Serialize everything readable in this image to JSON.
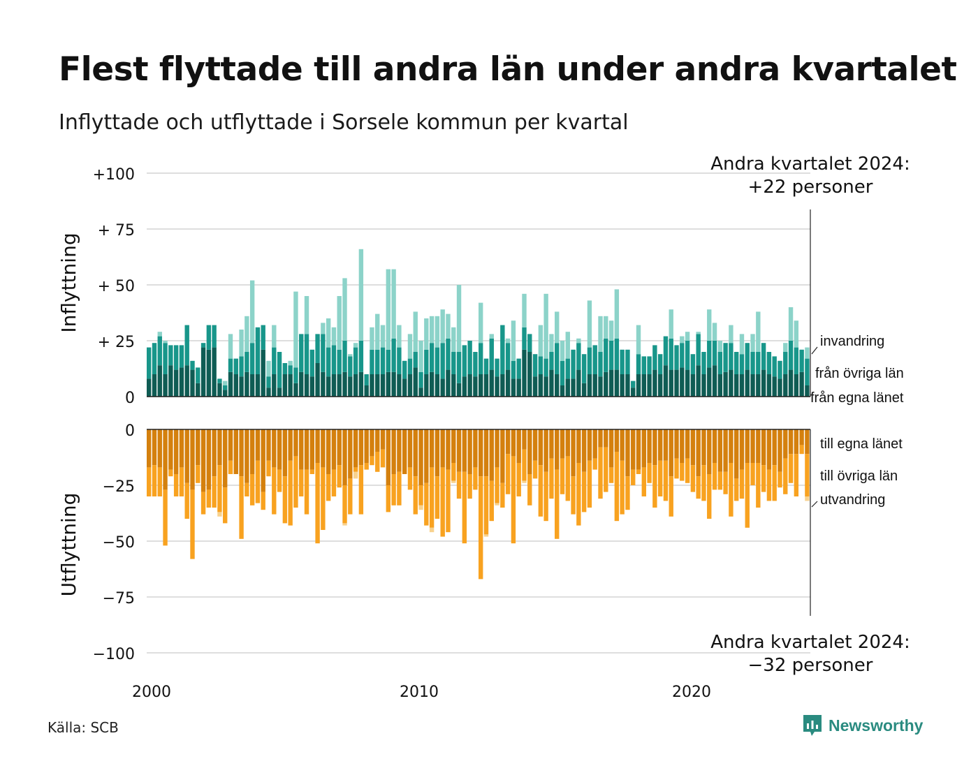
{
  "title": "Flest flyttade till andra län under andra kvartalet",
  "subtitle": "Inflyttade och utflyttade i Sorsele kommun per kvartal",
  "source": "Källa: SCB",
  "brand": {
    "name": "Newsworthy",
    "icon": "newsworthy-chart-bubble-icon",
    "color": "#2a8b80"
  },
  "chart_data": {
    "type": "bar",
    "stacked": true,
    "x_tick_labels": [
      "2000",
      "2010",
      "2020"
    ],
    "x_range": [
      "2000 Q1",
      "2024 Q2"
    ],
    "top_panel": {
      "ylabel": "Inflyttning",
      "ylim": [
        0,
        100
      ],
      "ytick_labels": [
        "0",
        "+ 25",
        "+ 50",
        "+ 75",
        "+100"
      ],
      "ytick_values": [
        0,
        25,
        50,
        75,
        100
      ],
      "series_colors": [
        "#0f5c54",
        "#18968a",
        "#8cd3c9"
      ],
      "series_labels": [
        "från egna länet",
        "från övriga län",
        "invandring"
      ],
      "own": [
        8,
        10,
        14,
        10,
        14,
        12,
        13,
        14,
        12,
        6,
        22,
        21,
        22,
        6,
        3,
        11,
        10,
        9,
        11,
        10,
        10,
        21,
        4,
        10,
        4,
        10,
        10,
        6,
        11,
        10,
        9,
        15,
        11,
        9,
        10,
        10,
        11,
        9,
        10,
        11,
        5,
        10,
        10,
        10,
        11,
        11,
        10,
        8,
        10,
        13,
        4,
        10,
        11,
        10,
        8,
        12,
        10,
        6,
        9,
        10,
        9,
        10,
        10,
        12,
        9,
        10,
        12,
        8,
        8,
        21,
        20,
        9,
        10,
        9,
        12,
        10,
        5,
        8,
        8,
        12,
        6,
        10,
        10,
        9,
        11,
        12,
        12,
        10,
        10,
        4,
        10,
        10,
        10,
        12,
        10,
        14,
        12,
        12,
        13,
        12,
        10,
        14,
        10,
        13,
        14,
        10,
        11,
        12,
        10,
        10,
        12,
        10,
        10,
        12,
        10,
        9,
        8,
        10,
        12,
        10,
        11,
        5
      ],
      "other": [
        14,
        14,
        13,
        14,
        9,
        11,
        10,
        18,
        4,
        7,
        2,
        11,
        10,
        2,
        2,
        6,
        7,
        9,
        9,
        14,
        21,
        11,
        5,
        12,
        16,
        5,
        4,
        7,
        17,
        18,
        12,
        13,
        17,
        13,
        13,
        11,
        14,
        9,
        12,
        14,
        5,
        11,
        11,
        12,
        10,
        15,
        12,
        8,
        7,
        7,
        7,
        11,
        13,
        12,
        16,
        14,
        10,
        14,
        14,
        15,
        11,
        14,
        7,
        14,
        8,
        22,
        12,
        8,
        9,
        10,
        8,
        10,
        8,
        8,
        8,
        14,
        11,
        9,
        13,
        12,
        13,
        12,
        13,
        11,
        15,
        13,
        14,
        11,
        11,
        3,
        9,
        8,
        8,
        11,
        9,
        13,
        14,
        11,
        11,
        13,
        9,
        14,
        10,
        12,
        11,
        10,
        13,
        12,
        10,
        9,
        12,
        10,
        10,
        12,
        10,
        9,
        8,
        10,
        13,
        12,
        10,
        12
      ],
      "immigration": [
        0,
        0,
        2,
        1,
        0,
        0,
        0,
        0,
        0,
        0,
        0,
        0,
        0,
        0,
        2,
        11,
        0,
        12,
        16,
        28,
        0,
        0,
        7,
        10,
        0,
        0,
        2,
        34,
        0,
        17,
        0,
        0,
        5,
        13,
        8,
        24,
        28,
        1,
        2,
        41,
        0,
        10,
        16,
        10,
        36,
        31,
        10,
        0,
        11,
        18,
        14,
        14,
        12,
        14,
        15,
        11,
        11,
        30,
        0,
        0,
        0,
        18,
        0,
        2,
        0,
        0,
        2,
        18,
        0,
        15,
        0,
        0,
        14,
        29,
        8,
        14,
        9,
        12,
        0,
        2,
        0,
        21,
        0,
        16,
        10,
        9,
        22,
        0,
        0,
        0,
        13,
        0,
        0,
        0,
        0,
        0,
        13,
        0,
        3,
        4,
        0,
        1,
        0,
        14,
        8,
        5,
        0,
        8,
        0,
        9,
        0,
        8,
        18,
        0,
        0,
        0,
        0,
        4,
        15,
        12,
        0,
        5
      ]
    },
    "bottom_panel": {
      "ylabel": "Utflyttning",
      "ylim": [
        -100,
        0
      ],
      "ytick_labels": [
        "0",
        "−25",
        "−50",
        "−75",
        "−100"
      ],
      "ytick_values": [
        0,
        -25,
        -50,
        -75,
        -100
      ],
      "series_colors": [
        "#d4800e",
        "#f8a220",
        "#f8d28e"
      ],
      "series_labels": [
        "till egna länet",
        "till övriga län",
        "utvandring"
      ],
      "own": [
        17,
        16,
        17,
        27,
        18,
        20,
        17,
        24,
        27,
        16,
        28,
        27,
        21,
        16,
        26,
        14,
        20,
        21,
        24,
        20,
        14,
        28,
        14,
        17,
        18,
        21,
        14,
        12,
        18,
        18,
        18,
        15,
        17,
        20,
        18,
        16,
        25,
        22,
        17,
        16,
        15,
        12,
        10,
        9,
        25,
        20,
        19,
        20,
        17,
        21,
        25,
        24,
        17,
        21,
        17,
        18,
        15,
        19,
        19,
        20,
        17,
        21,
        21,
        23,
        17,
        24,
        11,
        12,
        15,
        9,
        20,
        14,
        16,
        19,
        13,
        18,
        13,
        12,
        21,
        15,
        19,
        14,
        13,
        8,
        8,
        17,
        10,
        14,
        21,
        18,
        18,
        17,
        15,
        16,
        14,
        14,
        21,
        13,
        15,
        13,
        16,
        21,
        16,
        20,
        15,
        19,
        19,
        15,
        22,
        18,
        15,
        15,
        15,
        16,
        18,
        16,
        19,
        13,
        11,
        11,
        7,
        11
      ],
      "other": [
        13,
        14,
        13,
        25,
        3,
        10,
        13,
        16,
        31,
        8,
        10,
        8,
        14,
        21,
        16,
        6,
        0,
        28,
        6,
        14,
        19,
        8,
        7,
        21,
        10,
        21,
        29,
        23,
        12,
        20,
        2,
        36,
        28,
        12,
        12,
        10,
        17,
        16,
        2,
        22,
        3,
        4,
        9,
        8,
        12,
        14,
        15,
        0,
        10,
        17,
        9,
        19,
        27,
        19,
        31,
        28,
        8,
        12,
        32,
        11,
        10,
        46,
        26,
        18,
        16,
        11,
        18,
        39,
        15,
        14,
        14,
        8,
        23,
        22,
        18,
        31,
        16,
        20,
        17,
        28,
        18,
        21,
        5,
        23,
        20,
        7,
        31,
        24,
        15,
        7,
        2,
        13,
        9,
        19,
        16,
        18,
        18,
        9,
        8,
        11,
        12,
        10,
        16,
        20,
        12,
        8,
        10,
        24,
        10,
        13,
        29,
        10,
        20,
        12,
        14,
        16,
        7,
        16,
        13,
        19,
        4,
        19
      ],
      "emigration": [
        0,
        0,
        0,
        0,
        0,
        0,
        0,
        0,
        0,
        0,
        0,
        0,
        0,
        2,
        0,
        0,
        0,
        0,
        0,
        0,
        0,
        0,
        0,
        0,
        0,
        0,
        0,
        0,
        0,
        0,
        0,
        0,
        0,
        0,
        0,
        0,
        1,
        0,
        3,
        0,
        0,
        0,
        0,
        0,
        0,
        0,
        0,
        0,
        0,
        0,
        2,
        0,
        2,
        0,
        0,
        0,
        1,
        0,
        0,
        0,
        0,
        0,
        1,
        0,
        1,
        0,
        0,
        0,
        0,
        1,
        0,
        0,
        0,
        0,
        0,
        0,
        0,
        0,
        0,
        0,
        0,
        0,
        0,
        0,
        0,
        0,
        0,
        0,
        0,
        0,
        0,
        0,
        0,
        0,
        0,
        0,
        0,
        0,
        0,
        0,
        0,
        0,
        0,
        0,
        0,
        0,
        0,
        0,
        0,
        0,
        0,
        0,
        0,
        0,
        0,
        0,
        0,
        0,
        0,
        0,
        0,
        2
      ]
    },
    "annotations": {
      "top": [
        "Andra kvartalet 2024:",
        "+22 personer"
      ],
      "bottom": [
        "Andra kvartalet 2024:",
        "−32 personer"
      ]
    },
    "grid": true,
    "legend": "right, labels at end of series"
  }
}
